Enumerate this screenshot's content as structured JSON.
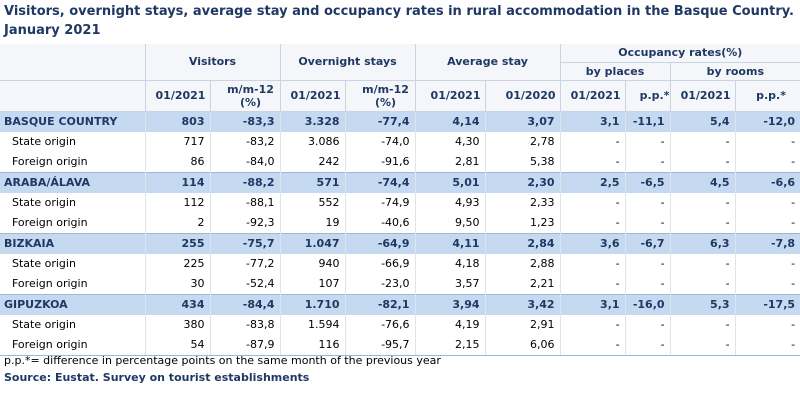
{
  "title": "Visitors, overnight stays, average stay and occupancy rates in rural accommodation in the Basque Country. January 2021",
  "table": {
    "header": {
      "visitors": "Visitors",
      "overnight": "Overnight stays",
      "average": "Average stay",
      "occupancy": "Occupancy rates(%)",
      "by_places": "by places",
      "by_rooms": "by rooms",
      "columns": [
        "01/2021",
        "m/m-12 (%)",
        "01/2021",
        "m/m-12 (%)",
        "01/2021",
        "01/2020",
        "01/2021",
        "p.p.*",
        "01/2021",
        "p.p.*"
      ]
    },
    "regions": [
      {
        "name": "BASQUE COUNTRY",
        "values": [
          "803",
          "-83,3",
          "3.328",
          "-77,4",
          "4,14",
          "3,07",
          "3,1",
          "-11,1",
          "5,4",
          "-12,0"
        ],
        "rows": [
          {
            "label": "State origin",
            "values": [
              "717",
              "-83,2",
              "3.086",
              "-74,0",
              "4,30",
              "2,78",
              "-",
              "-",
              "-",
              "-"
            ]
          },
          {
            "label": "Foreign origin",
            "values": [
              "86",
              "-84,0",
              "242",
              "-91,6",
              "2,81",
              "5,38",
              "-",
              "-",
              "-",
              "-"
            ]
          }
        ]
      },
      {
        "name": "ARABA/ÁLAVA",
        "values": [
          "114",
          "-88,2",
          "571",
          "-74,4",
          "5,01",
          "2,30",
          "2,5",
          "-6,5",
          "4,5",
          "-6,6"
        ],
        "rows": [
          {
            "label": "State origin",
            "values": [
              "112",
              "-88,1",
              "552",
              "-74,9",
              "4,93",
              "2,33",
              "-",
              "-",
              "-",
              "-"
            ]
          },
          {
            "label": "Foreign origin",
            "values": [
              "2",
              "-92,3",
              "19",
              "-40,6",
              "9,50",
              "1,23",
              "-",
              "-",
              "-",
              "-"
            ]
          }
        ]
      },
      {
        "name": "BIZKAIA",
        "values": [
          "255",
          "-75,7",
          "1.047",
          "-64,9",
          "4,11",
          "2,84",
          "3,6",
          "-6,7",
          "6,3",
          "-7,8"
        ],
        "rows": [
          {
            "label": "State origin",
            "values": [
              "225",
              "-77,2",
              "940",
              "-66,9",
              "4,18",
              "2,88",
              "-",
              "-",
              "-",
              "-"
            ]
          },
          {
            "label": "Foreign origin",
            "values": [
              "30",
              "-52,4",
              "107",
              "-23,0",
              "3,57",
              "2,21",
              "-",
              "-",
              "-",
              "-"
            ]
          }
        ]
      },
      {
        "name": "GIPUZKOA",
        "values": [
          "434",
          "-84,4",
          "1.710",
          "-82,1",
          "3,94",
          "3,42",
          "3,1",
          "-16,0",
          "5,3",
          "-17,5"
        ],
        "rows": [
          {
            "label": "State origin",
            "values": [
              "380",
              "-83,8",
              "1.594",
              "-76,6",
              "4,19",
              "2,91",
              "-",
              "-",
              "-",
              "-"
            ]
          },
          {
            "label": "Foreign origin",
            "values": [
              "54",
              "-87,9",
              "116",
              "-95,7",
              "2,15",
              "6,06",
              "-",
              "-",
              "-",
              "-"
            ]
          }
        ]
      }
    ]
  },
  "footnote": "p.p.*= difference in percentage points on the same month of the previous year",
  "source": "Source: Eustat. Survey on tourist establishments"
}
